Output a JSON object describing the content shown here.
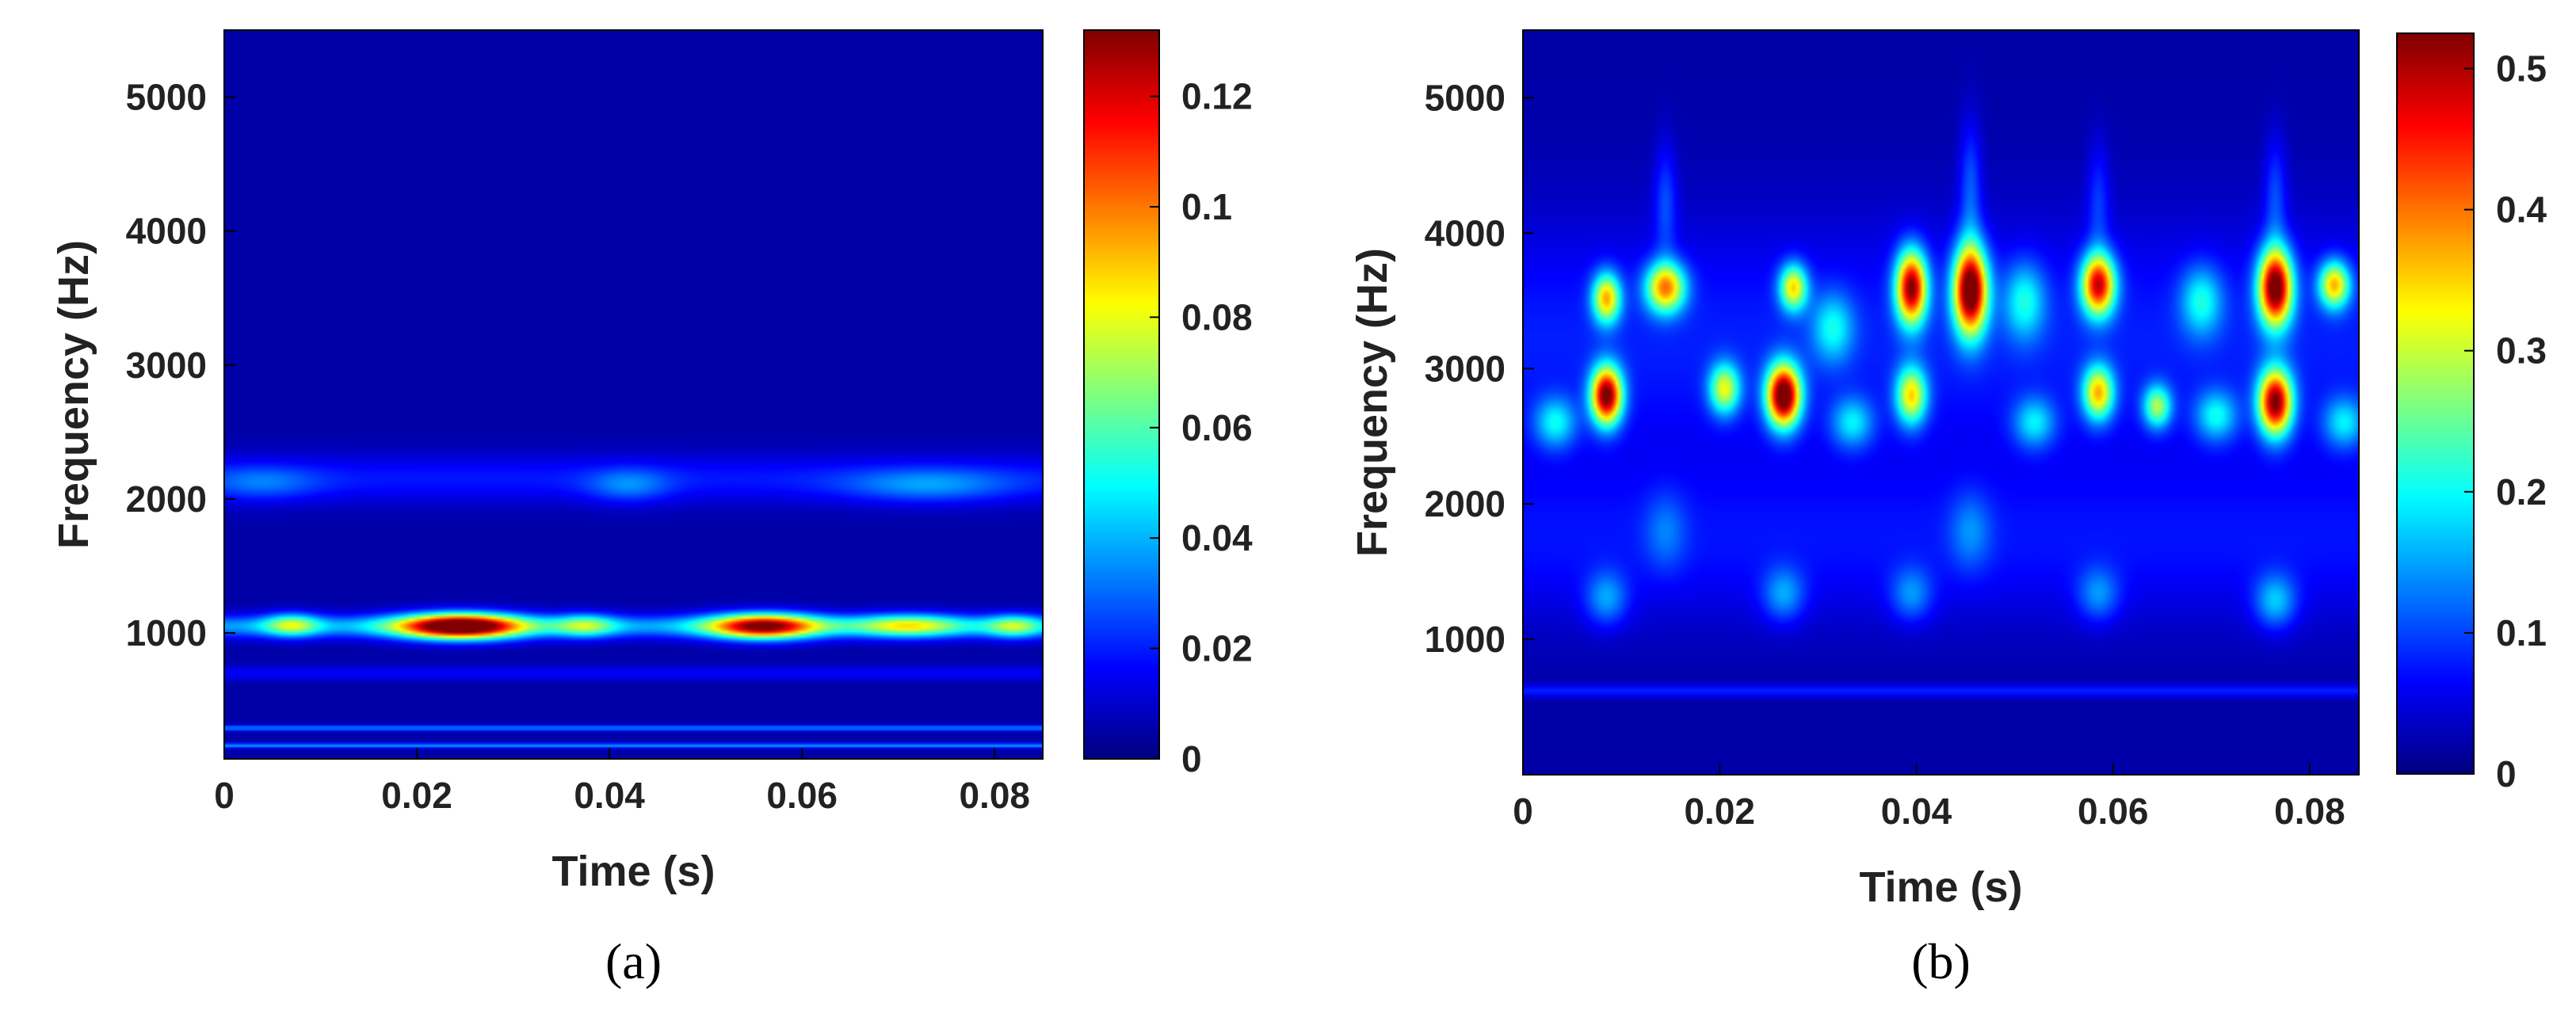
{
  "colormap": "jet",
  "chart_data": [
    {
      "type": "heatmap",
      "panel": "a",
      "caption": "(a)",
      "xlabel": "Time (s)",
      "ylabel": "Frequency (Hz)",
      "xlim": [
        0,
        0.085
      ],
      "ylim": [
        60,
        5500
      ],
      "xticks": [
        0,
        0.02,
        0.04,
        0.06,
        0.08
      ],
      "xtick_labels": [
        "0",
        "0.02",
        "0.04",
        "0.06",
        "0.08"
      ],
      "yticks": [
        1000,
        2000,
        3000,
        4000,
        5000
      ],
      "ytick_labels": [
        "1000",
        "2000",
        "3000",
        "4000",
        "5000"
      ],
      "colorbar": {
        "range": [
          0,
          0.132
        ],
        "ticks": [
          0,
          0.02,
          0.04,
          0.06,
          0.08,
          0.1,
          0.12
        ],
        "tick_labels": [
          "0",
          "0.02",
          "0.04",
          "0.06",
          "0.08",
          "0.1",
          "0.12"
        ]
      },
      "background": 0.005,
      "bands": [
        {
          "freq": 2150,
          "halfwidth": 180,
          "value": 0.014
        },
        {
          "freq": 1050,
          "halfwidth": 85,
          "value": 0.032
        },
        {
          "freq": 700,
          "halfwidth": 55,
          "value": 0.011
        },
        {
          "freq": 290,
          "halfwidth": 22,
          "value": 0.028
        },
        {
          "freq": 160,
          "halfwidth": 18,
          "value": 0.032
        }
      ],
      "blobs": [
        {
          "t": 0.0245,
          "f": 1050,
          "st": 0.0045,
          "sf": 65,
          "value": 0.13
        },
        {
          "t": 0.056,
          "f": 1050,
          "st": 0.004,
          "sf": 65,
          "value": 0.105
        },
        {
          "t": 0.007,
          "f": 1060,
          "st": 0.002,
          "sf": 60,
          "value": 0.045
        },
        {
          "t": 0.0375,
          "f": 1055,
          "st": 0.0022,
          "sf": 60,
          "value": 0.04
        },
        {
          "t": 0.071,
          "f": 1055,
          "st": 0.004,
          "sf": 60,
          "value": 0.05
        },
        {
          "t": 0.082,
          "f": 1050,
          "st": 0.002,
          "sf": 60,
          "value": 0.04
        },
        {
          "t": 0.042,
          "f": 2100,
          "st": 0.003,
          "sf": 90,
          "value": 0.018
        },
        {
          "t": 0.073,
          "f": 2100,
          "st": 0.006,
          "sf": 90,
          "value": 0.02
        },
        {
          "t": 0.004,
          "f": 2120,
          "st": 0.004,
          "sf": 90,
          "value": 0.015
        }
      ]
    },
    {
      "type": "heatmap",
      "panel": "b",
      "caption": "(b)",
      "xlabel": "Time (s)",
      "ylabel": "Frequency (Hz)",
      "xlim": [
        0,
        0.085
      ],
      "ylim": [
        0,
        5500
      ],
      "xticks": [
        0,
        0.02,
        0.04,
        0.06,
        0.08
      ],
      "xtick_labels": [
        "0",
        "0.02",
        "0.04",
        "0.06",
        "0.08"
      ],
      "yticks": [
        1000,
        2000,
        3000,
        4000,
        5000
      ],
      "ytick_labels": [
        "1000",
        "2000",
        "3000",
        "4000",
        "5000"
      ],
      "colorbar": {
        "range": [
          0,
          0.525
        ],
        "ticks": [
          0,
          0.1,
          0.2,
          0.3,
          0.4,
          0.5
        ],
        "tick_labels": [
          "0",
          "0.1",
          "0.2",
          "0.3",
          "0.4",
          "0.5"
        ]
      },
      "background": 0.02,
      "bands": [
        {
          "freq": 3200,
          "halfwidth": 900,
          "value": 0.06
        },
        {
          "freq": 1700,
          "halfwidth": 600,
          "value": 0.05
        },
        {
          "freq": 620,
          "halfwidth": 45,
          "value": 0.06
        }
      ],
      "blobs": [
        {
          "t": 0.0085,
          "f": 2800,
          "st": 0.0011,
          "sf": 150,
          "value": 0.48
        },
        {
          "t": 0.0085,
          "f": 3520,
          "st": 0.001,
          "sf": 130,
          "value": 0.3
        },
        {
          "t": 0.0145,
          "f": 3600,
          "st": 0.0014,
          "sf": 130,
          "value": 0.33
        },
        {
          "t": 0.0205,
          "f": 2850,
          "st": 0.0011,
          "sf": 130,
          "value": 0.25
        },
        {
          "t": 0.0265,
          "f": 2800,
          "st": 0.0012,
          "sf": 160,
          "value": 0.52
        },
        {
          "t": 0.0275,
          "f": 3600,
          "st": 0.001,
          "sf": 120,
          "value": 0.28
        },
        {
          "t": 0.0395,
          "f": 3600,
          "st": 0.0011,
          "sf": 190,
          "value": 0.46
        },
        {
          "t": 0.0395,
          "f": 2800,
          "st": 0.0011,
          "sf": 150,
          "value": 0.28
        },
        {
          "t": 0.0455,
          "f": 3580,
          "st": 0.0012,
          "sf": 230,
          "value": 0.52
        },
        {
          "t": 0.0585,
          "f": 3620,
          "st": 0.0012,
          "sf": 160,
          "value": 0.42
        },
        {
          "t": 0.0585,
          "f": 2820,
          "st": 0.0011,
          "sf": 140,
          "value": 0.3
        },
        {
          "t": 0.0645,
          "f": 2720,
          "st": 0.001,
          "sf": 110,
          "value": 0.22
        },
        {
          "t": 0.0765,
          "f": 3600,
          "st": 0.0012,
          "sf": 200,
          "value": 0.5
        },
        {
          "t": 0.0765,
          "f": 2750,
          "st": 0.0012,
          "sf": 170,
          "value": 0.47
        },
        {
          "t": 0.0825,
          "f": 3620,
          "st": 0.0011,
          "sf": 120,
          "value": 0.3
        },
        {
          "t": 0.0033,
          "f": 2600,
          "st": 0.0015,
          "sf": 130,
          "value": 0.14
        },
        {
          "t": 0.0315,
          "f": 3300,
          "st": 0.0015,
          "sf": 180,
          "value": 0.13
        },
        {
          "t": 0.0335,
          "f": 2600,
          "st": 0.0015,
          "sf": 130,
          "value": 0.13
        },
        {
          "t": 0.051,
          "f": 3500,
          "st": 0.0015,
          "sf": 200,
          "value": 0.14
        },
        {
          "t": 0.052,
          "f": 2600,
          "st": 0.0015,
          "sf": 130,
          "value": 0.13
        },
        {
          "t": 0.069,
          "f": 3500,
          "st": 0.0015,
          "sf": 180,
          "value": 0.14
        },
        {
          "t": 0.0705,
          "f": 2650,
          "st": 0.0015,
          "sf": 130,
          "value": 0.14
        },
        {
          "t": 0.0835,
          "f": 2600,
          "st": 0.0015,
          "sf": 130,
          "value": 0.13
        },
        {
          "t": 0.0145,
          "f": 4250,
          "st": 0.0008,
          "sf": 300,
          "value": 0.07
        },
        {
          "t": 0.0455,
          "f": 4350,
          "st": 0.0008,
          "sf": 350,
          "value": 0.08
        },
        {
          "t": 0.0585,
          "f": 4250,
          "st": 0.0008,
          "sf": 300,
          "value": 0.06
        },
        {
          "t": 0.0765,
          "f": 4300,
          "st": 0.0008,
          "sf": 300,
          "value": 0.07
        },
        {
          "t": 0.0085,
          "f": 1300,
          "st": 0.0015,
          "sf": 140,
          "value": 0.1
        },
        {
          "t": 0.0265,
          "f": 1330,
          "st": 0.0015,
          "sf": 140,
          "value": 0.1
        },
        {
          "t": 0.0395,
          "f": 1330,
          "st": 0.0015,
          "sf": 140,
          "value": 0.09
        },
        {
          "t": 0.0585,
          "f": 1330,
          "st": 0.0015,
          "sf": 140,
          "value": 0.09
        },
        {
          "t": 0.0765,
          "f": 1280,
          "st": 0.0015,
          "sf": 140,
          "value": 0.12
        },
        {
          "t": 0.0455,
          "f": 1800,
          "st": 0.0015,
          "sf": 200,
          "value": 0.07
        },
        {
          "t": 0.0145,
          "f": 1800,
          "st": 0.0015,
          "sf": 200,
          "value": 0.06
        }
      ]
    }
  ]
}
